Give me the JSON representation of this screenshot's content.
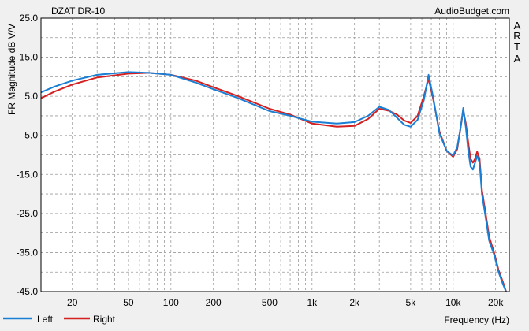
{
  "chart_data": {
    "type": "line",
    "title": "DZAT DR-10",
    "watermark": "AudioBudget.com",
    "side_label": [
      "A",
      "R",
      "T",
      "A"
    ],
    "xlabel": "Frequency (Hz)",
    "ylabel": "FR Magnitude dB V/V",
    "x_scale": "log",
    "xlim": [
      12,
      25000
    ],
    "ylim": [
      -45,
      25
    ],
    "grid": true,
    "legend_position": "bottom-left",
    "y_ticks": [
      {
        "value": 25,
        "label": "25.0"
      },
      {
        "value": 15,
        "label": "15.0"
      },
      {
        "value": 5,
        "label": "5.0"
      },
      {
        "value": -5,
        "label": "-5.0"
      },
      {
        "value": -15,
        "label": "-15.0"
      },
      {
        "value": -25,
        "label": "-25.0"
      },
      {
        "value": -35,
        "label": "-35.0"
      },
      {
        "value": -45,
        "label": "-45.0"
      }
    ],
    "x_ticks": [
      {
        "value": 20,
        "label": "20"
      },
      {
        "value": 50,
        "label": "50"
      },
      {
        "value": 100,
        "label": "100"
      },
      {
        "value": 200,
        "label": "200"
      },
      {
        "value": 500,
        "label": "500"
      },
      {
        "value": 1000,
        "label": "1k"
      },
      {
        "value": 2000,
        "label": "2k"
      },
      {
        "value": 5000,
        "label": "5k"
      },
      {
        "value": 10000,
        "label": "10k"
      },
      {
        "value": 20000,
        "label": "20k"
      }
    ],
    "series": [
      {
        "name": "Left",
        "color": "#1a7fd4",
        "points": [
          [
            12,
            6
          ],
          [
            15,
            7.5
          ],
          [
            20,
            9
          ],
          [
            30,
            10.5
          ],
          [
            50,
            11.2
          ],
          [
            70,
            11
          ],
          [
            100,
            10.5
          ],
          [
            150,
            8.5
          ],
          [
            200,
            6.8
          ],
          [
            300,
            4.5
          ],
          [
            500,
            1.2
          ],
          [
            700,
            0
          ],
          [
            1000,
            -1.5
          ],
          [
            1500,
            -2
          ],
          [
            2000,
            -1.6
          ],
          [
            2500,
            0
          ],
          [
            3000,
            2.3
          ],
          [
            3500,
            1.5
          ],
          [
            4000,
            -0.5
          ],
          [
            4500,
            -2.3
          ],
          [
            5000,
            -2.8
          ],
          [
            5600,
            -1
          ],
          [
            6200,
            4
          ],
          [
            6700,
            10.5
          ],
          [
            7200,
            5
          ],
          [
            8000,
            -4.5
          ],
          [
            9000,
            -9
          ],
          [
            10000,
            -10.2
          ],
          [
            10700,
            -8
          ],
          [
            11300,
            -3
          ],
          [
            11800,
            2
          ],
          [
            12300,
            -3
          ],
          [
            12800,
            -9
          ],
          [
            13300,
            -13
          ],
          [
            13800,
            -13.8
          ],
          [
            14300,
            -12
          ],
          [
            14800,
            -10.3
          ],
          [
            15400,
            -12
          ],
          [
            16000,
            -20
          ],
          [
            17000,
            -26
          ],
          [
            18000,
            -32
          ],
          [
            19500,
            -35.5
          ],
          [
            21000,
            -40
          ],
          [
            22500,
            -43
          ],
          [
            24000,
            -45.5
          ]
        ]
      },
      {
        "name": "Right",
        "color": "#d42020",
        "points": [
          [
            12,
            4.5
          ],
          [
            15,
            6.2
          ],
          [
            20,
            8
          ],
          [
            30,
            9.8
          ],
          [
            50,
            10.8
          ],
          [
            70,
            11
          ],
          [
            100,
            10.5
          ],
          [
            150,
            9
          ],
          [
            200,
            7.3
          ],
          [
            300,
            5
          ],
          [
            500,
            1.8
          ],
          [
            700,
            0.3
          ],
          [
            1000,
            -2
          ],
          [
            1500,
            -2.8
          ],
          [
            2000,
            -2.6
          ],
          [
            2500,
            -0.8
          ],
          [
            3000,
            1.8
          ],
          [
            3500,
            1.3
          ],
          [
            4000,
            0.3
          ],
          [
            4500,
            -1.2
          ],
          [
            5000,
            -1.8
          ],
          [
            5600,
            0
          ],
          [
            6200,
            5
          ],
          [
            6700,
            9.5
          ],
          [
            7200,
            4.5
          ],
          [
            8000,
            -4
          ],
          [
            9000,
            -9
          ],
          [
            10000,
            -10.5
          ],
          [
            10700,
            -8.5
          ],
          [
            11300,
            -3
          ],
          [
            11800,
            1.5
          ],
          [
            12300,
            -2
          ],
          [
            12800,
            -7
          ],
          [
            13300,
            -11
          ],
          [
            13800,
            -12
          ],
          [
            14300,
            -11
          ],
          [
            14800,
            -9.2
          ],
          [
            15400,
            -11
          ],
          [
            16000,
            -19
          ],
          [
            17000,
            -25
          ],
          [
            18000,
            -31
          ],
          [
            19500,
            -35
          ],
          [
            21000,
            -39.5
          ],
          [
            22500,
            -42.5
          ],
          [
            24000,
            -45.5
          ]
        ]
      }
    ]
  }
}
